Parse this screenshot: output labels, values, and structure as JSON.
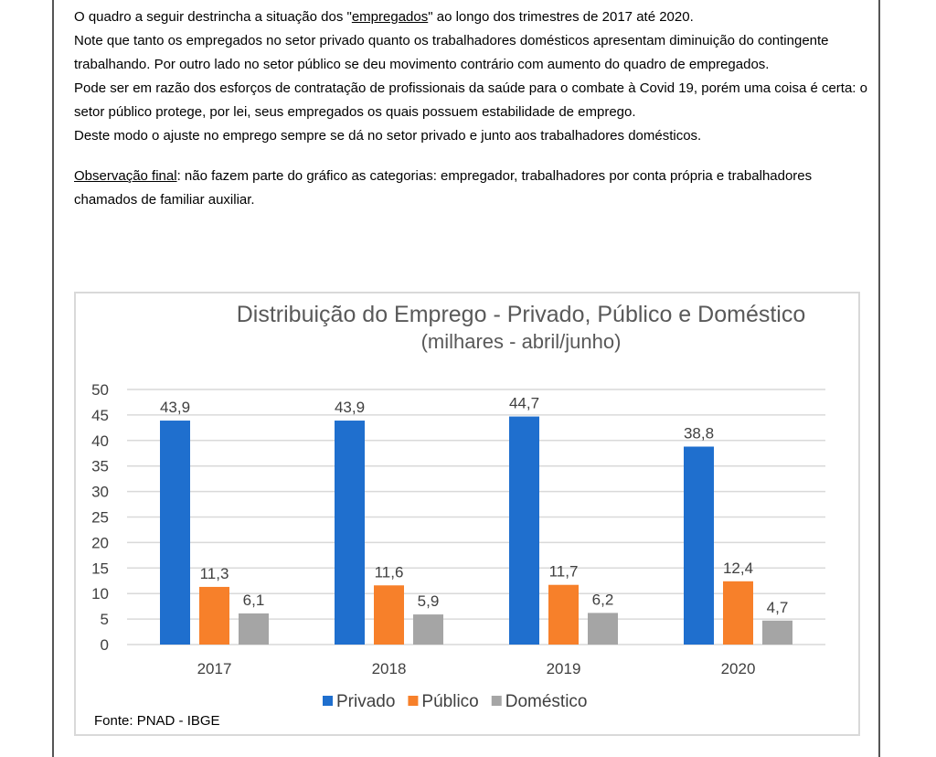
{
  "paragraphs": {
    "p1_before": "O quadro a seguir destrincha a situação dos \"",
    "p1_link": "empregados",
    "p1_after": "\" ao longo dos trimestres de 2017 até 2020.",
    "p2": "Note que tanto os empregados no setor privado quanto os trabalhadores domésticos apresentam diminuição do contingente trabalhando. Por outro lado no setor público se deu movimento contrário com aumento do quadro de empregados.",
    "p3": "Pode ser em razão dos esforços de contratação de profissionais da saúde para o combate à Covid 19, porém uma coisa é certa: o setor público protege, por lei, seus empregados os quais possuem estabilidade de emprego.",
    "p4": "Deste modo o ajuste no emprego sempre se dá no setor privado e junto aos trabalhadores domésticos.",
    "obs_label": "Observação final",
    "obs_text": ": não fazem parte do gráfico as categorias: empregador, trabalhadores por conta própria e trabalhadores chamados de familiar auxiliar."
  },
  "chart_data": {
    "type": "bar",
    "title": "Distribuição do Emprego - Privado, Público e Doméstico",
    "subtitle": "(milhares - abril/junho)",
    "xlabel": "",
    "ylabel": "",
    "categories": [
      "2017",
      "2018",
      "2019",
      "2020"
    ],
    "series": [
      {
        "name": "Privado",
        "color": "#1f6fce",
        "values": [
          43.9,
          43.9,
          44.7,
          38.8
        ],
        "labels": [
          "43,9",
          "43,9",
          "44,7",
          "38,8"
        ]
      },
      {
        "name": "Público",
        "color": "#f7802a",
        "values": [
          11.3,
          11.6,
          11.7,
          12.4
        ],
        "labels": [
          "11,3",
          "11,6",
          "11,7",
          "12,4"
        ]
      },
      {
        "name": "Doméstico",
        "color": "#a5a5a5",
        "values": [
          6.1,
          5.9,
          6.2,
          4.7
        ],
        "labels": [
          "6,1",
          "5,9",
          "6,2",
          "4,7"
        ]
      }
    ],
    "ylim": [
      0,
      50
    ],
    "yticks": [
      0,
      5,
      10,
      15,
      20,
      25,
      30,
      35,
      40,
      45,
      50
    ],
    "grid": true,
    "legend": "bottom",
    "source": "Fonte: PNAD - IBGE"
  }
}
